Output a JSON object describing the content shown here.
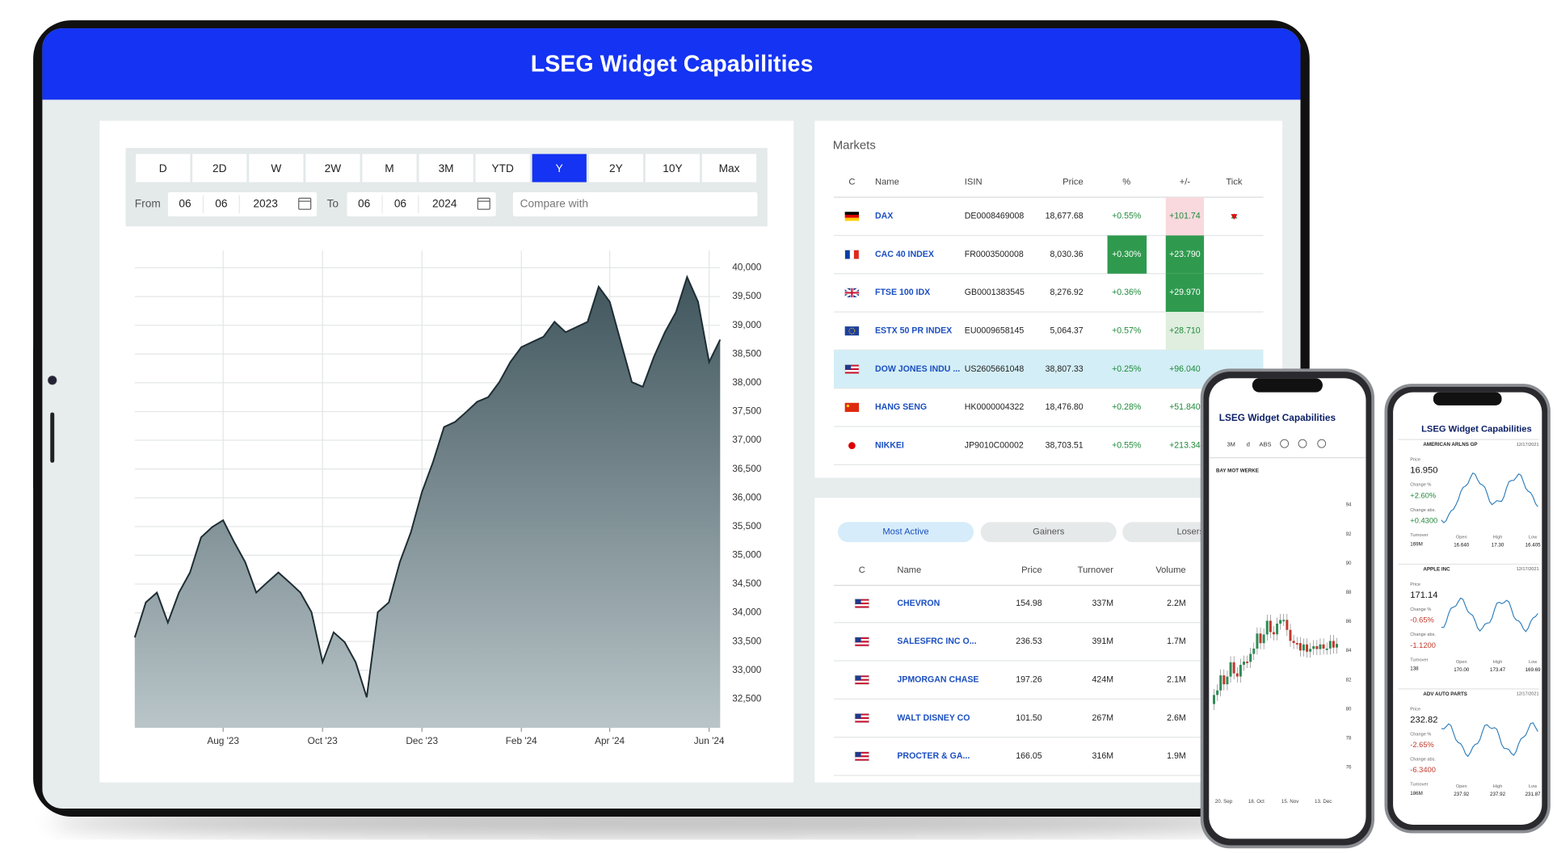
{
  "header": {
    "title": "LSEG Widget Capabilities"
  },
  "range_tabs": [
    "D",
    "2D",
    "W",
    "2W",
    "M",
    "3M",
    "YTD",
    "Y",
    "2Y",
    "10Y",
    "Max"
  ],
  "active_tab_index": 7,
  "date_filter": {
    "from_label": "From",
    "from": [
      "06",
      "06",
      "2023"
    ],
    "to_label": "To",
    "to": [
      "06",
      "06",
      "2024"
    ],
    "compare_placeholder": "Compare with"
  },
  "chart": {
    "type": "area",
    "color": "#1e2d33",
    "grid": true,
    "categories": [
      null,
      null,
      null,
      null,
      null,
      null,
      null,
      null,
      "Aug '23",
      null,
      null,
      null,
      null,
      null,
      null,
      null,
      null,
      "Oct '23",
      null,
      null,
      null,
      null,
      null,
      null,
      null,
      null,
      "Dec '23",
      null,
      null,
      null,
      null,
      null,
      null,
      null,
      null,
      "Feb '24",
      null,
      null,
      null,
      null,
      null,
      null,
      null,
      "Apr '24",
      null,
      null,
      null,
      null,
      null,
      null,
      null,
      null,
      "Jun '24",
      null
    ],
    "values": [
      33570,
      34180,
      34350,
      33830,
      34350,
      34700,
      35310,
      35490,
      35610,
      35230,
      34880,
      34350,
      34530,
      34700,
      34530,
      34350,
      34010,
      33140,
      33660,
      33490,
      33140,
      32530,
      34010,
      34180,
      34880,
      35400,
      36100,
      36620,
      37230,
      37320,
      37490,
      37670,
      37750,
      38010,
      38360,
      38620,
      38710,
      38800,
      39060,
      38880,
      38970,
      39060,
      39670,
      39410,
      38710,
      38010,
      37930,
      38450,
      38880,
      39230,
      39840,
      39410,
      38360,
      38750
    ],
    "ylim": [
      32000,
      40300
    ],
    "yticks": [
      {
        "value": 32500,
        "label": "32,500"
      },
      {
        "value": 33000,
        "label": "33,000"
      },
      {
        "value": 33500,
        "label": "33,500"
      },
      {
        "value": 34000,
        "label": "34,000"
      },
      {
        "value": 34500,
        "label": "34,500"
      },
      {
        "value": 35000,
        "label": "35,000"
      },
      {
        "value": 35500,
        "label": "35,500"
      },
      {
        "value": 36000,
        "label": "36,000"
      },
      {
        "value": 36500,
        "label": "36,500"
      },
      {
        "value": 37000,
        "label": "37,000"
      },
      {
        "value": 37500,
        "label": "37,500"
      },
      {
        "value": 38000,
        "label": "38,000"
      },
      {
        "value": 38500,
        "label": "38,500"
      },
      {
        "value": 39000,
        "label": "39,000"
      },
      {
        "value": 39500,
        "label": "39,500"
      },
      {
        "value": 40000,
        "label": "40,000"
      }
    ]
  },
  "markets": {
    "title": "Markets",
    "columns": [
      "C",
      "Name",
      "ISIN",
      "Price",
      "%",
      "+/-",
      "Tick"
    ],
    "rows": [
      [
        "DAX",
        "DE0008469008",
        "18,677.68",
        "+0.55%",
        "+101.74"
      ],
      [
        "CAC 40 INDEX",
        "FR0003500008",
        "8,030.36",
        "+0.30%",
        "+23.790"
      ],
      [
        "FTSE 100 IDX",
        "GB0001383545",
        "8,276.92",
        "+0.36%",
        "+29.970"
      ],
      [
        "ESTX 50 PR INDEX",
        "EU0009658145",
        "5,064.37",
        "+0.57%",
        "+28.710"
      ],
      [
        "DOW JONES INDU ...",
        "US2605661048",
        "38,807.33",
        "+0.25%",
        "+96.040"
      ],
      [
        "HANG SENG",
        "HK0000004322",
        "18,476.80",
        "+0.28%",
        "+51.840"
      ],
      [
        "NIKKEI",
        "JP9010C00002",
        "38,703.51",
        "+0.55%",
        "+213.34"
      ]
    ]
  },
  "movers": {
    "tabs": [
      "Most Active",
      "Gainers",
      "Losers"
    ],
    "columns": [
      "C",
      "Name",
      "Price",
      "Turnover",
      "Volume"
    ],
    "rows": [
      [
        "CHEVRON",
        "154.98",
        "337M",
        "2.2M"
      ],
      [
        "SALESFRC INC O...",
        "236.53",
        "391M",
        "1.7M"
      ],
      [
        "JPMORGAN CHASE",
        "197.26",
        "424M",
        "2.1M"
      ],
      [
        "WALT DISNEY CO",
        "101.50",
        "267M",
        "2.6M"
      ],
      [
        "PROCTER & GA...",
        "166.05",
        "316M",
        "1.9M"
      ]
    ]
  },
  "phone_chart": {
    "title": "LSEG Widget Capabilities",
    "toolbar": [
      "3M",
      "d",
      "ABS"
    ],
    "instrument": "BAY MOT WERKE",
    "yticks": [
      "94",
      "92",
      "90",
      "88",
      "86",
      "84",
      "82",
      "80",
      "78",
      "76"
    ],
    "xticks": [
      "20. Sep",
      "18. Oct",
      "15. Nov",
      "13. Dec"
    ]
  },
  "phone_list": {
    "title": "LSEG Widget Capabilities",
    "labels": {
      "price": "Price",
      "change_pct": "Change %",
      "change_abs": "Change abs.",
      "turnover": "Turnover",
      "open": "Open",
      "high": "High",
      "low": "Low"
    },
    "stocks": [
      {
        "name": "AMERICAN ARLNS GP",
        "date": "12/17/2021",
        "price": "16.950",
        "change_pct": "+2.60%",
        "change_abs": "+0.4300",
        "turnover": "169M",
        "open": "16.640",
        "high": "17.30",
        "low": "16.405"
      },
      {
        "name": "APPLE INC",
        "date": "12/17/2021",
        "price": "171.14",
        "change_pct": "-0.65%",
        "change_abs": "-1.1200",
        "turnover": "138",
        "open": "170.00",
        "high": "173.47",
        "low": "169.69"
      },
      {
        "name": "ADV AUTO PARTS",
        "date": "12/17/2021",
        "price": "232.82",
        "change_pct": "-2.65%",
        "change_abs": "-6.3400",
        "turnover": "186M",
        "open": "237.92",
        "high": "237.92",
        "low": "231.87"
      }
    ]
  }
}
